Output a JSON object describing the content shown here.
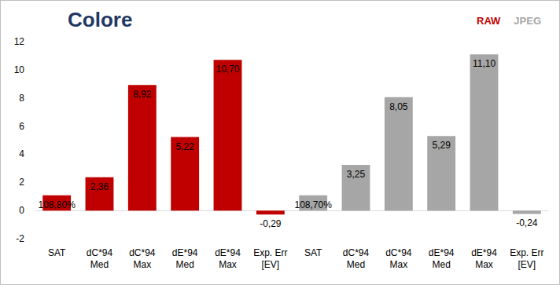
{
  "chart_data": {
    "type": "bar",
    "title": "Colore",
    "categories": [
      "SAT",
      "dC*94\nMed",
      "dC*94\nMax",
      "dE*94\nMed",
      "dE*94\nMax",
      "Exp. Err\n[EV]",
      "SAT",
      "dC*94\nMed",
      "dC*94\nMax",
      "dE*94\nMed",
      "dE*94\nMax",
      "Exp. Err\n[EV]"
    ],
    "series": [
      {
        "name": "RAW",
        "color": "#c00000",
        "values": [
          1.088,
          2.36,
          8.92,
          5.22,
          10.7,
          -0.29,
          null,
          null,
          null,
          null,
          null,
          null
        ],
        "value_labels": [
          "108,80%",
          "2,36",
          "8,92",
          "5,22",
          "10,70",
          "-0,29",
          null,
          null,
          null,
          null,
          null,
          null
        ]
      },
      {
        "name": "JPEG",
        "color": "#a6a6a6",
        "values": [
          null,
          null,
          null,
          null,
          null,
          null,
          1.087,
          3.25,
          8.05,
          5.29,
          11.1,
          -0.24
        ],
        "value_labels": [
          null,
          null,
          null,
          null,
          null,
          null,
          "108,70%",
          "3,25",
          "8,05",
          "5,29",
          "11,10",
          "-0,24"
        ]
      }
    ],
    "ylim": [
      -2,
      12
    ],
    "yticks": [
      -2,
      0,
      2,
      4,
      6,
      8,
      10,
      12
    ],
    "grid": false,
    "legend": "top-right",
    "data_labels": true
  }
}
